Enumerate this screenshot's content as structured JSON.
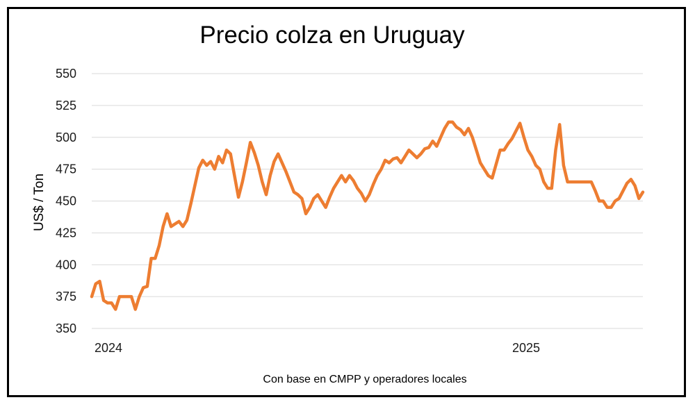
{
  "chart_data": {
    "type": "line",
    "title": "Precio colza en Uruguay",
    "ylabel": "US$ / Ton",
    "xlabel": "",
    "footnote": "Con base en CMPP y operadores locales",
    "ylim": [
      350,
      550
    ],
    "yticks": [
      "350",
      "375",
      "400",
      "425",
      "450",
      "475",
      "500",
      "525",
      "550"
    ],
    "xtick_labels": [
      {
        "label": "2024",
        "index": 0
      },
      {
        "label": "2025",
        "index": 112
      }
    ],
    "grid": true,
    "legend": "none",
    "series": [
      {
        "color": "#ED7D31",
        "values": [
          375,
          385,
          387,
          372,
          370,
          370,
          365,
          375,
          375,
          375,
          375,
          365,
          375,
          382,
          383,
          405,
          405,
          415,
          430,
          440,
          430,
          432,
          434,
          430,
          435,
          448,
          462,
          476,
          482,
          478,
          481,
          475,
          485,
          480,
          490,
          487,
          470,
          453,
          465,
          480,
          496,
          488,
          478,
          465,
          455,
          470,
          481,
          487,
          480,
          473,
          465,
          457,
          455,
          452,
          440,
          445,
          452,
          455,
          450,
          445,
          453,
          460,
          465,
          470,
          465,
          470,
          466,
          460,
          456,
          450,
          455,
          463,
          470,
          475,
          482,
          480,
          483,
          484,
          480,
          485,
          490,
          487,
          484,
          487,
          491,
          492,
          497,
          493,
          500,
          507,
          512,
          512,
          508,
          506,
          502,
          507,
          500,
          490,
          480,
          475,
          470,
          468,
          479,
          490,
          490,
          495,
          499,
          505,
          511,
          500,
          490,
          485,
          478,
          475,
          465,
          460,
          460,
          490,
          510,
          478,
          465,
          465,
          465,
          465,
          465,
          465,
          465,
          458,
          450,
          450,
          445,
          445,
          450,
          452,
          458,
          464,
          467,
          462,
          452,
          457
        ]
      }
    ]
  }
}
